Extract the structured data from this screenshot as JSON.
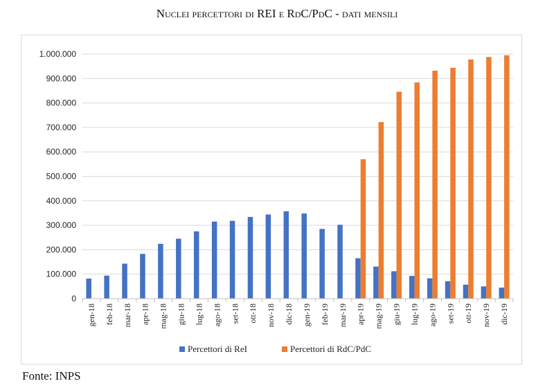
{
  "title": "Nuclei percettori di REI e RdC/PdC - dati mensili",
  "source": "Fonte: INPS",
  "chart_data": {
    "type": "bar",
    "title": "Nuclei percettori di REI e RdC/PdC - dati mensili",
    "xlabel": "",
    "ylabel": "",
    "ylim": [
      0,
      1000000
    ],
    "yticks": [
      0,
      100000,
      200000,
      300000,
      400000,
      500000,
      600000,
      700000,
      800000,
      900000,
      1000000
    ],
    "ytick_labels": [
      "0",
      "100.000",
      "200.000",
      "300.000",
      "400.000",
      "500.000",
      "600.000",
      "700.000",
      "800.000",
      "900.000",
      "1.000.000"
    ],
    "grid": true,
    "legend": "bottom",
    "categories": [
      "gen-18",
      "feb-18",
      "mar-18",
      "apr-18",
      "mag-18",
      "giu-18",
      "lug-18",
      "ago-18",
      "set-18",
      "ott-18",
      "nov-18",
      "dic-18",
      "gen-19",
      "feb-19",
      "mar-19",
      "apr-19",
      "mag-19",
      "giu-19",
      "lug-19",
      "ago-19",
      "set-19",
      "ott-19",
      "nov-19",
      "dic-19"
    ],
    "series": [
      {
        "name": "Percettori di ReI",
        "color": "#4472c4",
        "values": [
          82000,
          94000,
          143000,
          183000,
          224000,
          245000,
          275000,
          315000,
          318000,
          334000,
          344000,
          357000,
          348000,
          285000,
          302000,
          165000,
          131000,
          112000,
          93000,
          83000,
          71000,
          57000,
          50000,
          45000
        ]
      },
      {
        "name": "Percettori di RdC/PdC",
        "color": "#ed7d31",
        "values": [
          null,
          null,
          null,
          null,
          null,
          null,
          null,
          null,
          null,
          null,
          null,
          null,
          null,
          null,
          null,
          570000,
          722000,
          846000,
          884000,
          932000,
          944000,
          978000,
          988000,
          995000
        ]
      }
    ]
  }
}
